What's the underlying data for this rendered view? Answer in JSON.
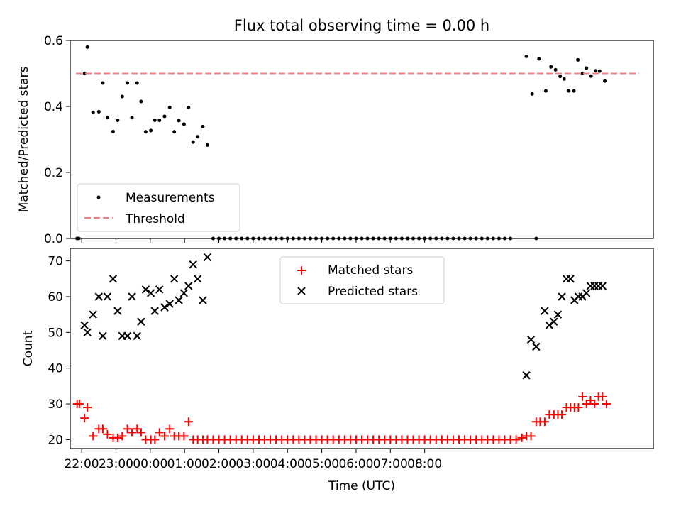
{
  "figure": {
    "title": "Flux total observing time = 0.00 h"
  },
  "chart_data": [
    {
      "type": "scatter",
      "panel": "top",
      "ylabel": "Matched/Predicted stars",
      "xlabel": "",
      "ylim": [
        0,
        0.6
      ],
      "yticks": [
        0.0,
        0.2,
        0.4,
        0.6
      ],
      "yticklabels": [
        "0.0",
        "0.2",
        "0.4",
        "0.6"
      ],
      "xlim_minutes_since_2200": [
        -20,
        1000
      ],
      "grid": false,
      "legend": {
        "placement": "lower-left",
        "entries": [
          "Measurements",
          "Threshold"
        ]
      },
      "threshold": {
        "name": "Threshold",
        "value": 0.5,
        "x_range_minutes_since_2200": [
          -10,
          975
        ],
        "color": "#f08080"
      },
      "series": [
        {
          "name": "Measurements",
          "marker": "dot",
          "color": "#000000",
          "points": [
            [
              -8,
              0.0
            ],
            [
              -5,
              0.0
            ],
            [
              5,
              0.5
            ],
            [
              10,
              0.58
            ],
            [
              20,
              0.382
            ],
            [
              30,
              0.384
            ],
            [
              37,
              0.471
            ],
            [
              45,
              0.366
            ],
            [
              55,
              0.324
            ],
            [
              63,
              0.358
            ],
            [
              71,
              0.43
            ],
            [
              80,
              0.471
            ],
            [
              88,
              0.366
            ],
            [
              97,
              0.471
            ],
            [
              104,
              0.415
            ],
            [
              112,
              0.323
            ],
            [
              121,
              0.327
            ],
            [
              128,
              0.358
            ],
            [
              136,
              0.358
            ],
            [
              145,
              0.37
            ],
            [
              154,
              0.397
            ],
            [
              162,
              0.323
            ],
            [
              170,
              0.357
            ],
            [
              179,
              0.346
            ],
            [
              187,
              0.397
            ],
            [
              195,
              0.292
            ],
            [
              203,
              0.308
            ],
            [
              212,
              0.339
            ],
            [
              220,
              0.283
            ],
            [
              230,
              0.0
            ],
            [
              240,
              0.0
            ],
            [
              250,
              0.0
            ],
            [
              260,
              0.0
            ],
            [
              270,
              0.0
            ],
            [
              280,
              0.0
            ],
            [
              290,
              0.0
            ],
            [
              300,
              0.0
            ],
            [
              310,
              0.0
            ],
            [
              320,
              0.0
            ],
            [
              330,
              0.0
            ],
            [
              340,
              0.0
            ],
            [
              350,
              0.0
            ],
            [
              360,
              0.0
            ],
            [
              370,
              0.0
            ],
            [
              380,
              0.0
            ],
            [
              390,
              0.0
            ],
            [
              400,
              0.0
            ],
            [
              410,
              0.0
            ],
            [
              420,
              0.0
            ],
            [
              430,
              0.0
            ],
            [
              440,
              0.0
            ],
            [
              450,
              0.0
            ],
            [
              460,
              0.0
            ],
            [
              470,
              0.0
            ],
            [
              480,
              0.0
            ],
            [
              490,
              0.0
            ],
            [
              500,
              0.0
            ],
            [
              510,
              0.0
            ],
            [
              520,
              0.0
            ],
            [
              530,
              0.0
            ],
            [
              540,
              0.0
            ],
            [
              550,
              0.0
            ],
            [
              560,
              0.0
            ],
            [
              570,
              0.0
            ],
            [
              580,
              0.0
            ],
            [
              590,
              0.0
            ],
            [
              600,
              0.0
            ],
            [
              610,
              0.0
            ],
            [
              620,
              0.0
            ],
            [
              630,
              0.0
            ],
            [
              640,
              0.0
            ],
            [
              650,
              0.0
            ],
            [
              660,
              0.0
            ],
            [
              670,
              0.0
            ],
            [
              680,
              0.0
            ],
            [
              690,
              0.0
            ],
            [
              700,
              0.0
            ],
            [
              710,
              0.0
            ],
            [
              720,
              0.0
            ],
            [
              730,
              0.0
            ],
            [
              740,
              0.0
            ],
            [
              750,
              0.0
            ],
            [
              778,
              0.552
            ],
            [
              788,
              0.438
            ],
            [
              795,
              0.0
            ],
            [
              800,
              0.544
            ],
            [
              812,
              0.447
            ],
            [
              821,
              0.52
            ],
            [
              829,
              0.511
            ],
            [
              837,
              0.491
            ],
            [
              844,
              0.483
            ],
            [
              852,
              0.447
            ],
            [
              861,
              0.447
            ],
            [
              868,
              0.541
            ],
            [
              876,
              0.5
            ],
            [
              883,
              0.516
            ],
            [
              891,
              0.492
            ],
            [
              899,
              0.508
            ],
            [
              906,
              0.507
            ],
            [
              915,
              0.477
            ]
          ]
        }
      ]
    },
    {
      "type": "scatter",
      "panel": "bottom",
      "xlabel": "Time (UTC)",
      "ylabel": "Count",
      "ylim": [
        17.5,
        73.5
      ],
      "yticks": [
        20,
        30,
        40,
        50,
        60,
        70
      ],
      "yticklabels": [
        "20",
        "30",
        "40",
        "50",
        "60",
        "70"
      ],
      "xlim_minutes_since_2200": [
        -20,
        1000
      ],
      "xticks_minutes_since_2200": [
        0,
        60,
        120,
        180,
        240,
        300,
        360,
        420,
        480,
        540,
        600
      ],
      "xticklabels": [
        "22:00",
        "23:00",
        "00:00",
        "01:00",
        "02:00",
        "03:00",
        "04:00",
        "05:00",
        "06:00",
        "07:00",
        "08:00"
      ],
      "grid": false,
      "legend": {
        "placement": "upper-center",
        "entries": [
          "Matched stars",
          "Predicted stars"
        ]
      },
      "series": [
        {
          "name": "Matched stars",
          "marker": "plus",
          "color": "#ff0000",
          "points": [
            [
              -8,
              30
            ],
            [
              -4,
              30
            ],
            [
              5,
              26
            ],
            [
              10,
              29
            ],
            [
              20,
              21
            ],
            [
              30,
              23
            ],
            [
              37,
              23
            ],
            [
              45,
              21.5
            ],
            [
              55,
              20.5
            ],
            [
              63,
              20.5
            ],
            [
              71,
              21
            ],
            [
              80,
              23
            ],
            [
              88,
              22
            ],
            [
              97,
              23
            ],
            [
              104,
              22
            ],
            [
              112,
              20
            ],
            [
              121,
              20
            ],
            [
              128,
              20
            ],
            [
              136,
              22
            ],
            [
              145,
              21
            ],
            [
              154,
              23
            ],
            [
              162,
              21
            ],
            [
              170,
              21
            ],
            [
              179,
              21
            ],
            [
              187,
              25
            ],
            [
              195,
              20
            ],
            [
              203,
              20
            ],
            [
              212,
              20
            ],
            [
              220,
              20
            ],
            [
              230,
              20
            ],
            [
              240,
              20
            ],
            [
              250,
              20
            ],
            [
              260,
              20
            ],
            [
              270,
              20
            ],
            [
              280,
              20
            ],
            [
              290,
              20
            ],
            [
              300,
              20
            ],
            [
              310,
              20
            ],
            [
              320,
              20
            ],
            [
              330,
              20
            ],
            [
              340,
              20
            ],
            [
              350,
              20
            ],
            [
              360,
              20
            ],
            [
              370,
              20
            ],
            [
              380,
              20
            ],
            [
              390,
              20
            ],
            [
              400,
              20
            ],
            [
              410,
              20
            ],
            [
              420,
              20
            ],
            [
              430,
              20
            ],
            [
              440,
              20
            ],
            [
              450,
              20
            ],
            [
              460,
              20
            ],
            [
              470,
              20
            ],
            [
              480,
              20
            ],
            [
              490,
              20
            ],
            [
              500,
              20
            ],
            [
              510,
              20
            ],
            [
              520,
              20
            ],
            [
              530,
              20
            ],
            [
              540,
              20
            ],
            [
              550,
              20
            ],
            [
              560,
              20
            ],
            [
              570,
              20
            ],
            [
              580,
              20
            ],
            [
              590,
              20
            ],
            [
              600,
              20
            ],
            [
              610,
              20
            ],
            [
              620,
              20
            ],
            [
              630,
              20
            ],
            [
              640,
              20
            ],
            [
              650,
              20
            ],
            [
              660,
              20
            ],
            [
              670,
              20
            ],
            [
              680,
              20
            ],
            [
              690,
              20
            ],
            [
              700,
              20
            ],
            [
              710,
              20
            ],
            [
              720,
              20
            ],
            [
              730,
              20
            ],
            [
              740,
              20
            ],
            [
              750,
              20
            ],
            [
              760,
              20
            ],
            [
              770,
              20.5
            ],
            [
              778,
              21
            ],
            [
              786,
              21
            ],
            [
              795,
              25
            ],
            [
              802,
              25
            ],
            [
              810,
              25
            ],
            [
              818,
              27
            ],
            [
              826,
              27
            ],
            [
              833,
              27
            ],
            [
              840,
              27
            ],
            [
              848,
              29
            ],
            [
              855,
              29
            ],
            [
              862,
              29
            ],
            [
              869,
              29
            ],
            [
              876,
              32
            ],
            [
              883,
              30
            ],
            [
              890,
              31
            ],
            [
              897,
              30
            ],
            [
              904,
              32
            ],
            [
              911,
              32
            ],
            [
              918,
              30
            ]
          ]
        },
        {
          "name": "Predicted stars",
          "marker": "x",
          "color": "#000000",
          "points": [
            [
              5,
              52
            ],
            [
              10,
              50
            ],
            [
              20,
              55
            ],
            [
              30,
              60
            ],
            [
              37,
              49
            ],
            [
              45,
              60
            ],
            [
              55,
              65
            ],
            [
              63,
              56
            ],
            [
              71,
              49
            ],
            [
              80,
              49
            ],
            [
              88,
              60
            ],
            [
              97,
              49
            ],
            [
              104,
              53
            ],
            [
              112,
              62
            ],
            [
              121,
              61
            ],
            [
              128,
              56
            ],
            [
              136,
              62
            ],
            [
              145,
              57
            ],
            [
              154,
              58
            ],
            [
              162,
              65
            ],
            [
              170,
              59
            ],
            [
              179,
              61
            ],
            [
              187,
              63
            ],
            [
              195,
              69
            ],
            [
              203,
              65
            ],
            [
              212,
              59
            ],
            [
              220,
              71
            ],
            [
              778,
              38
            ],
            [
              786,
              48
            ],
            [
              795,
              46
            ],
            [
              810,
              56
            ],
            [
              818,
              52
            ],
            [
              826,
              53
            ],
            [
              833,
              55
            ],
            [
              840,
              60
            ],
            [
              848,
              65
            ],
            [
              855,
              65
            ],
            [
              862,
              59
            ],
            [
              869,
              60
            ],
            [
              876,
              60
            ],
            [
              883,
              61
            ],
            [
              890,
              63
            ],
            [
              897,
              63
            ],
            [
              904,
              63
            ],
            [
              911,
              63
            ]
          ]
        }
      ]
    }
  ]
}
